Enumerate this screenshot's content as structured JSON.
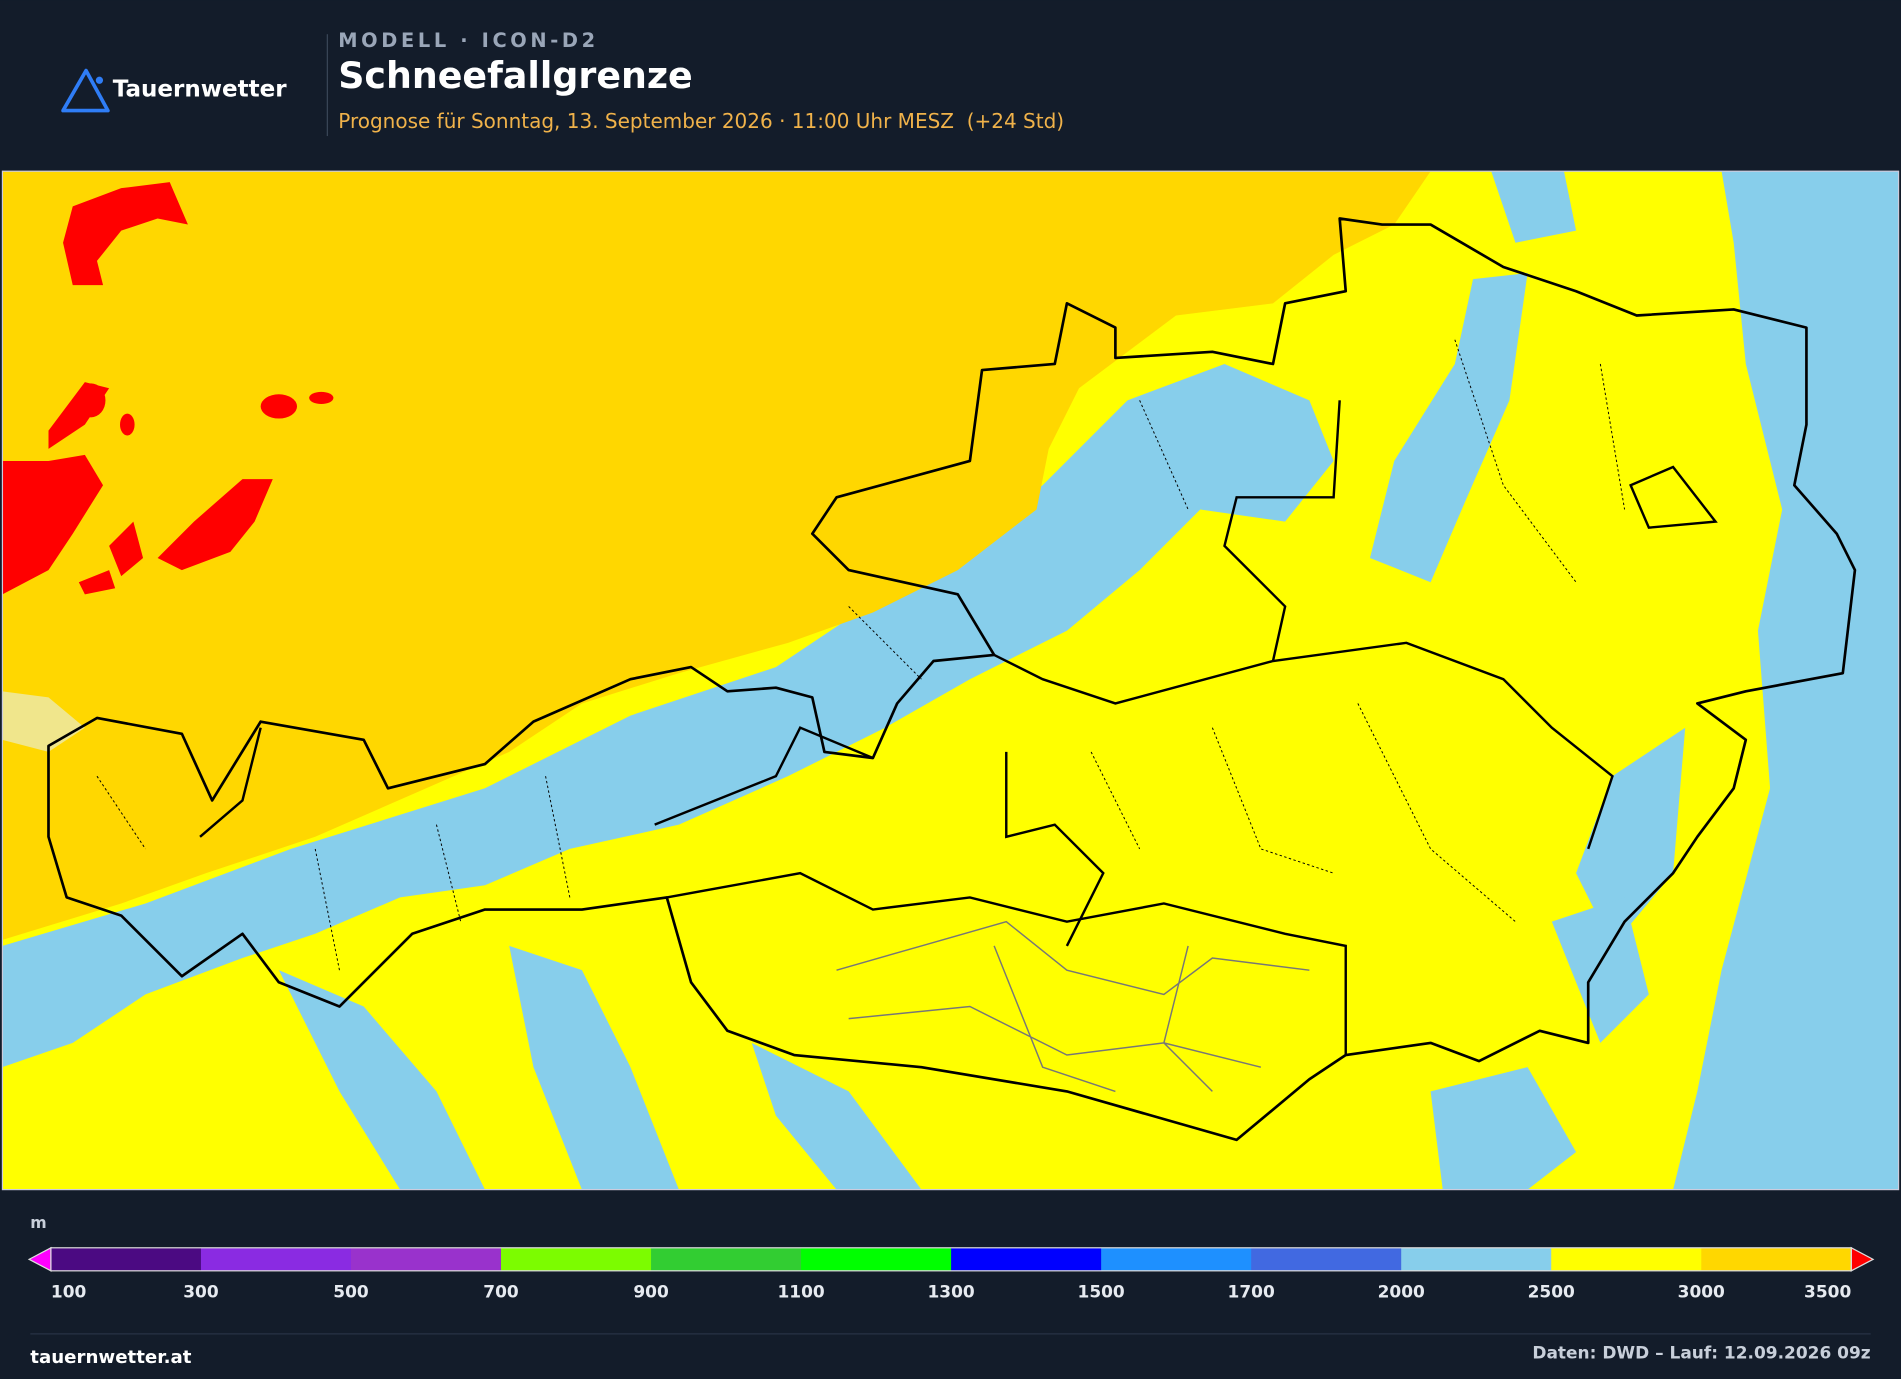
{
  "header": {
    "logo": "Tauernwetter",
    "model": "MODELL · ICON-D2",
    "title": "Schneefallgrenze",
    "subtitle": "Prognose für Sonntag, 13. September 2026 · 11:00 Uhr MESZ  (+24 Std)"
  },
  "legend": {
    "unit": "m",
    "ticks": [
      100,
      300,
      500,
      700,
      900,
      1100,
      1300,
      1500,
      1700,
      2000,
      2500,
      3000,
      3500
    ],
    "colors": [
      "#4b0a82",
      "#8a2be2",
      "#9932cc",
      "#7cfc00",
      "#32cd32",
      "#00ff00",
      "#0000ff",
      "#1e90ff",
      "#4169e1",
      "#87ceeb",
      "#ffff00",
      "#ffd700"
    ],
    "under_color": "#ff00ff",
    "over_color": "#ff0000"
  },
  "footer": {
    "left": "tauernwetter.at",
    "right": "Daten: DWD – Lauf: 12.09.2026 09z"
  }
}
